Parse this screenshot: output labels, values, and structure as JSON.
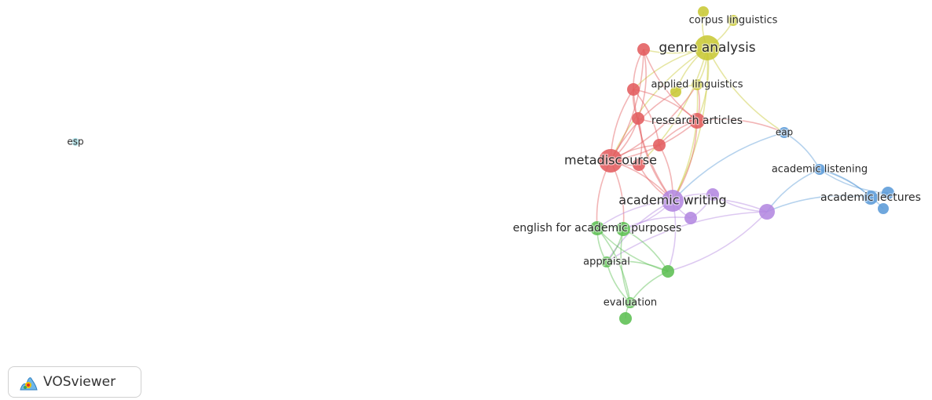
{
  "colors": {
    "red": "#e25c5e",
    "yellow": "#c8c834",
    "green": "#5cbf52",
    "blue": "#5b9bd8",
    "purple": "#b387e0",
    "cyan": "#4fc4d2"
  },
  "network": {
    "nodes": [
      {
        "id": "esp",
        "label": "esp",
        "cluster": "cyan"
      },
      {
        "id": "corpus-linguistics",
        "label": "corpus linguistics",
        "cluster": "yellow"
      },
      {
        "id": "corpus-top",
        "label": "",
        "cluster": "yellow"
      },
      {
        "id": "genre-analysis",
        "label": "genre analysis",
        "cluster": "yellow"
      },
      {
        "id": "applied-linguistics",
        "label": "applied linguistics",
        "cluster": "yellow"
      },
      {
        "id": "yellow-small",
        "label": "",
        "cluster": "yellow"
      },
      {
        "id": "red-top",
        "label": "",
        "cluster": "red"
      },
      {
        "id": "red-a",
        "label": "",
        "cluster": "red"
      },
      {
        "id": "red-b",
        "label": "",
        "cluster": "red"
      },
      {
        "id": "research-articles",
        "label": "research articles",
        "cluster": "red"
      },
      {
        "id": "red-c",
        "label": "",
        "cluster": "red"
      },
      {
        "id": "metadiscourse",
        "label": "metadiscourse",
        "cluster": "red"
      },
      {
        "id": "red-d",
        "label": "",
        "cluster": "red"
      },
      {
        "id": "eap",
        "label": "eap",
        "cluster": "blue"
      },
      {
        "id": "academic-listening",
        "label": "academic listening",
        "cluster": "blue"
      },
      {
        "id": "academic-lectures",
        "label": "academic lectures",
        "cluster": "blue"
      },
      {
        "id": "blue-a",
        "label": "",
        "cluster": "blue"
      },
      {
        "id": "blue-b",
        "label": "",
        "cluster": "blue"
      },
      {
        "id": "academic-writing",
        "label": "academic writing",
        "cluster": "purple"
      },
      {
        "id": "purple-a",
        "label": "",
        "cluster": "purple"
      },
      {
        "id": "purple-b",
        "label": "",
        "cluster": "purple"
      },
      {
        "id": "purple-c",
        "label": "",
        "cluster": "purple"
      },
      {
        "id": "english-for-academic-purposes",
        "label": "english for academic purposes",
        "cluster": "green"
      },
      {
        "id": "green-a",
        "label": "",
        "cluster": "green"
      },
      {
        "id": "appraisal",
        "label": "appraisal",
        "cluster": "green"
      },
      {
        "id": "green-b",
        "label": "",
        "cluster": "green"
      },
      {
        "id": "evaluation",
        "label": "evaluation",
        "cluster": "green"
      },
      {
        "id": "green-c",
        "label": "",
        "cluster": "green"
      }
    ],
    "links": [
      [
        "corpus-linguistics",
        "genre-analysis"
      ],
      [
        "corpus-top",
        "genre-analysis"
      ],
      [
        "genre-analysis",
        "red-top"
      ],
      [
        "genre-analysis",
        "red-a"
      ],
      [
        "genre-analysis",
        "applied-linguistics"
      ],
      [
        "genre-analysis",
        "yellow-small"
      ],
      [
        "genre-analysis",
        "research-articles"
      ],
      [
        "genre-analysis",
        "metadiscourse"
      ],
      [
        "genre-analysis",
        "academic-writing"
      ],
      [
        "genre-analysis",
        "eap"
      ],
      [
        "genre-analysis",
        "red-d"
      ],
      [
        "red-top",
        "red-a"
      ],
      [
        "red-top",
        "red-b"
      ],
      [
        "red-top",
        "research-articles"
      ],
      [
        "red-top",
        "metadiscourse"
      ],
      [
        "red-a",
        "red-b"
      ],
      [
        "red-a",
        "research-articles"
      ],
      [
        "red-a",
        "metadiscourse"
      ],
      [
        "red-a",
        "red-c"
      ],
      [
        "red-a",
        "academic-writing"
      ],
      [
        "red-b",
        "metadiscourse"
      ],
      [
        "red-b",
        "research-articles"
      ],
      [
        "red-b",
        "red-d"
      ],
      [
        "red-b",
        "academic-writing"
      ],
      [
        "research-articles",
        "metadiscourse"
      ],
      [
        "research-articles",
        "red-c"
      ],
      [
        "research-articles",
        "academic-writing"
      ],
      [
        "research-articles",
        "applied-linguistics"
      ],
      [
        "research-articles",
        "eap"
      ],
      [
        "red-c",
        "metadiscourse"
      ],
      [
        "red-c",
        "academic-writing"
      ],
      [
        "metadiscourse",
        "red-d"
      ],
      [
        "metadiscourse",
        "academic-writing"
      ],
      [
        "metadiscourse",
        "english-for-academic-purposes"
      ],
      [
        "metadiscourse",
        "green-a"
      ],
      [
        "metadiscourse",
        "applied-linguistics"
      ],
      [
        "metadiscourse",
        "yellow-small"
      ],
      [
        "red-d",
        "academic-writing"
      ],
      [
        "applied-linguistics",
        "academic-writing"
      ],
      [
        "applied-linguistics",
        "yellow-small"
      ],
      [
        "eap",
        "academic-listening"
      ],
      [
        "eap",
        "academic-writing"
      ],
      [
        "academic-listening",
        "academic-lectures"
      ],
      [
        "academic-listening",
        "blue-a"
      ],
      [
        "academic-listening",
        "blue-b"
      ],
      [
        "academic-listening",
        "purple-c"
      ],
      [
        "academic-lectures",
        "blue-a"
      ],
      [
        "academic-lectures",
        "purple-c"
      ],
      [
        "academic-writing",
        "purple-a"
      ],
      [
        "academic-writing",
        "purple-b"
      ],
      [
        "academic-writing",
        "purple-c"
      ],
      [
        "academic-writing",
        "english-for-academic-purposes"
      ],
      [
        "academic-writing",
        "green-a"
      ],
      [
        "academic-writing",
        "appraisal"
      ],
      [
        "academic-writing",
        "green-b"
      ],
      [
        "purple-a",
        "purple-c"
      ],
      [
        "purple-a",
        "purple-b"
      ],
      [
        "purple-b",
        "green-a"
      ],
      [
        "purple-c",
        "green-b"
      ],
      [
        "purple-c",
        "appraisal"
      ],
      [
        "english-for-academic-purposes",
        "green-a"
      ],
      [
        "english-for-academic-purposes",
        "appraisal"
      ],
      [
        "english-for-academic-purposes",
        "evaluation"
      ],
      [
        "english-for-academic-purposes",
        "green-b"
      ],
      [
        "green-a",
        "appraisal"
      ],
      [
        "green-a",
        "evaluation"
      ],
      [
        "green-a",
        "green-b"
      ],
      [
        "appraisal",
        "evaluation"
      ],
      [
        "appraisal",
        "green-b"
      ],
      [
        "evaluation",
        "green-c"
      ],
      [
        "evaluation",
        "green-b"
      ]
    ]
  },
  "logo": {
    "text": "VOSviewer"
  }
}
